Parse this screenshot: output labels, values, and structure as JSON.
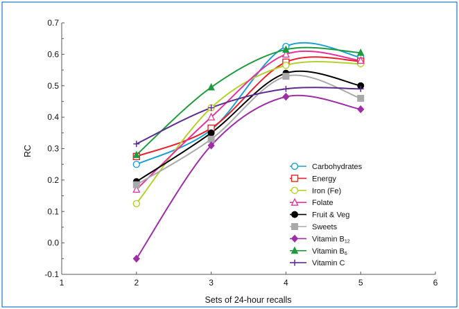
{
  "chart_data": {
    "type": "line",
    "xlabel": "Sets of 24-hour recalls",
    "ylabel": "RC",
    "xlim": [
      1,
      6
    ],
    "ylim": [
      -0.1,
      0.7
    ],
    "xticks": [
      "1",
      "2",
      "3",
      "4",
      "5",
      "6"
    ],
    "yticks": [
      "-0.1",
      "0.0",
      "0.1",
      "0.2",
      "0.3",
      "0.4",
      "0.5",
      "0.6",
      "0.7"
    ],
    "legend_position": "center-right",
    "x": [
      2,
      3,
      4,
      5
    ],
    "series": [
      {
        "name": "Carbohydrates",
        "name_sub": "",
        "values": [
          0.25,
          0.36,
          0.625,
          0.59
        ],
        "color": "#1a9fd0",
        "marker": "circle-open"
      },
      {
        "name": "Energy",
        "name_sub": "",
        "values": [
          0.275,
          0.365,
          0.575,
          0.578
        ],
        "color": "#e8202a",
        "marker": "square-open"
      },
      {
        "name": "Iron (Fe)",
        "name_sub": "",
        "values": [
          0.125,
          0.43,
          0.565,
          0.57
        ],
        "color": "#b6cf2e",
        "marker": "circle-open"
      },
      {
        "name": "Folate",
        "name_sub": "",
        "values": [
          0.17,
          0.4,
          0.6,
          0.58
        ],
        "color": "#e8309b",
        "marker": "triangle-open"
      },
      {
        "name": "Fruit & Veg",
        "name_sub": "",
        "values": [
          0.195,
          0.35,
          0.54,
          0.5
        ],
        "color": "#000000",
        "marker": "circle-filled"
      },
      {
        "name": "Sweets",
        "name_sub": "",
        "values": [
          0.185,
          0.33,
          0.53,
          0.46
        ],
        "color": "#a9a9a9",
        "marker": "square-filled"
      },
      {
        "name": "Vitamin B",
        "name_sub": "12",
        "values": [
          -0.05,
          0.31,
          0.465,
          0.425
        ],
        "color": "#9b2fa3",
        "marker": "diamond-filled"
      },
      {
        "name": "Vitamin B",
        "name_sub": "6",
        "values": [
          0.28,
          0.495,
          0.615,
          0.605
        ],
        "color": "#1f9a3e",
        "marker": "triangle-filled"
      },
      {
        "name": "Vitamin C",
        "name_sub": "",
        "values": [
          0.315,
          0.43,
          0.49,
          0.49
        ],
        "color": "#5b2c8c",
        "marker": "plus"
      }
    ]
  },
  "colors": {
    "frame_border": "#1b75bc",
    "axis": "#555555"
  }
}
